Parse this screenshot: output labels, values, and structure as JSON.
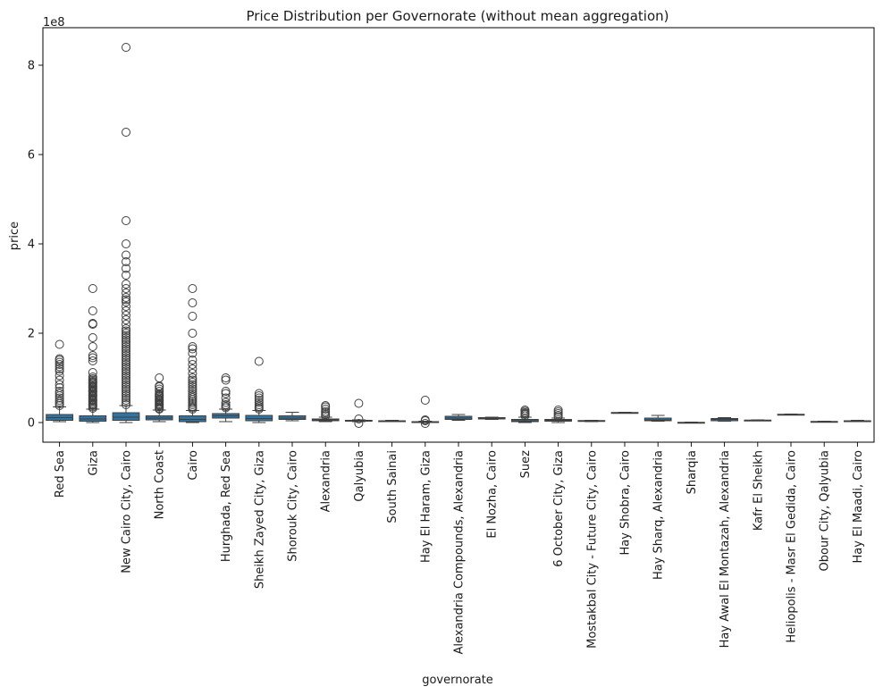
{
  "chart_data": {
    "type": "box",
    "title": "Price Distribution per Governorate (without mean aggregation)",
    "xlabel": "governorate",
    "ylabel": "price",
    "y_multiplier_label": "1e8",
    "y_scale_factor": 100000000,
    "ylim": [
      -4.4,
      8.85
    ],
    "yticks": [
      0,
      2,
      4,
      6,
      8
    ],
    "grid": false,
    "legend": "none",
    "box_color": "#3274a1",
    "edge_color": "#3f3f3f",
    "categories": [
      "Red Sea",
      "Giza",
      "New Cairo City, Cairo",
      "North Coast",
      "Cairo",
      "Hurghada, Red Sea",
      "Sheikh Zayed City, Giza",
      "Shorouk City, Cairo",
      "Alexandria",
      "Qalyubia",
      "South Sainai",
      "Hay El Haram, Giza",
      "Alexandria Compounds, Alexandria",
      "El Nozha, Cairo",
      "Suez",
      "6 October City, Giza",
      "Mostakbal City - Future City, Cairo",
      "Hay Shobra, Cairo",
      "Hay Sharq, Alexandria",
      "Sharqia",
      "Hay Awal El Montazah, Alexandria",
      "Kafr El Sheikh",
      "Heliopolis - Masr El Gedida, Cairo",
      "Obour City, Qalyubia",
      "Hay El Maadi, Cairo"
    ],
    "boxes": [
      {
        "whislo": 0.02,
        "q1": 0.05,
        "med": 0.11,
        "q3": 0.18,
        "whishi": 0.35,
        "fliers": [
          0.38,
          0.42,
          0.46,
          0.5,
          0.55,
          0.6,
          0.65,
          0.7,
          0.78,
          0.85,
          0.95,
          1.05,
          1.15,
          1.2,
          1.25,
          1.3,
          1.35,
          1.4,
          1.43,
          1.75
        ]
      },
      {
        "whislo": 0.0,
        "q1": 0.03,
        "med": 0.08,
        "q3": 0.15,
        "whishi": 0.3,
        "fliers": [
          0.32,
          0.35,
          0.38,
          0.4,
          0.42,
          0.45,
          0.48,
          0.5,
          0.52,
          0.55,
          0.58,
          0.6,
          0.62,
          0.65,
          0.68,
          0.7,
          0.72,
          0.75,
          0.78,
          0.8,
          0.82,
          0.85,
          0.88,
          0.9,
          0.92,
          0.95,
          0.98,
          1.02,
          1.12,
          1.38,
          1.45,
          1.5,
          1.7,
          1.9,
          2.2,
          2.22,
          2.5,
          3.0
        ]
      },
      {
        "whislo": 0.0,
        "q1": 0.05,
        "med": 0.12,
        "q3": 0.22,
        "whishi": 0.38,
        "fliers": [
          0.4,
          0.45,
          0.5,
          0.55,
          0.6,
          0.65,
          0.7,
          0.75,
          0.8,
          0.85,
          0.9,
          0.95,
          1.0,
          1.05,
          1.1,
          1.15,
          1.2,
          1.25,
          1.3,
          1.35,
          1.4,
          1.45,
          1.5,
          1.55,
          1.6,
          1.65,
          1.7,
          1.75,
          1.8,
          1.85,
          1.9,
          1.95,
          2.0,
          2.05,
          2.1,
          2.2,
          2.3,
          2.4,
          2.5,
          2.6,
          2.7,
          2.75,
          2.8,
          2.9,
          3.0,
          3.1,
          3.3,
          3.45,
          3.6,
          3.75,
          4.0,
          4.52,
          6.5,
          8.4
        ]
      },
      {
        "whislo": 0.02,
        "q1": 0.06,
        "med": 0.1,
        "q3": 0.15,
        "whishi": 0.28,
        "fliers": [
          0.3,
          0.32,
          0.35,
          0.38,
          0.4,
          0.42,
          0.45,
          0.48,
          0.5,
          0.52,
          0.55,
          0.58,
          0.6,
          0.62,
          0.65,
          0.7,
          0.75,
          0.8,
          0.82,
          1.0
        ]
      },
      {
        "whislo": 0.0,
        "q1": 0.02,
        "med": 0.07,
        "q3": 0.15,
        "whishi": 0.27,
        "fliers": [
          0.3,
          0.33,
          0.36,
          0.4,
          0.44,
          0.48,
          0.52,
          0.56,
          0.6,
          0.65,
          0.7,
          0.75,
          0.8,
          0.85,
          0.9,
          0.95,
          1.0,
          1.1,
          1.2,
          1.3,
          1.4,
          1.55,
          1.65,
          1.7,
          2.0,
          2.38,
          2.68,
          3.0
        ]
      },
      {
        "whislo": 0.02,
        "q1": 0.1,
        "med": 0.15,
        "q3": 0.2,
        "whishi": 0.3,
        "fliers": [
          0.33,
          0.36,
          0.4,
          0.45,
          0.55,
          0.65,
          0.7,
          0.95,
          1.0
        ]
      },
      {
        "whislo": 0.0,
        "q1": 0.04,
        "med": 0.09,
        "q3": 0.16,
        "whishi": 0.27,
        "fliers": [
          0.3,
          0.33,
          0.36,
          0.4,
          0.45,
          0.5,
          0.55,
          0.6,
          0.65,
          1.37
        ]
      },
      {
        "whislo": 0.04,
        "q1": 0.07,
        "med": 0.1,
        "q3": 0.15,
        "whishi": 0.23,
        "fliers": []
      },
      {
        "whislo": 0.02,
        "q1": 0.04,
        "med": 0.06,
        "q3": 0.08,
        "whishi": 0.12,
        "fliers": [
          0.15,
          0.18,
          0.22,
          0.25,
          0.3,
          0.35,
          0.38
        ]
      },
      {
        "whislo": 0.02,
        "q1": 0.03,
        "med": 0.04,
        "q3": 0.05,
        "whishi": 0.06,
        "fliers": [
          -0.02,
          0.08,
          0.43
        ]
      },
      {
        "whislo": 0.02,
        "q1": 0.03,
        "med": 0.035,
        "q3": 0.04,
        "whishi": 0.05,
        "fliers": []
      },
      {
        "whislo": 0.0,
        "q1": 0.01,
        "med": 0.015,
        "q3": 0.02,
        "whishi": 0.03,
        "fliers": [
          -0.02,
          0.04,
          0.06,
          0.5
        ]
      },
      {
        "whislo": 0.05,
        "q1": 0.07,
        "med": 0.1,
        "q3": 0.14,
        "whishi": 0.18,
        "fliers": []
      },
      {
        "whislo": 0.07,
        "q1": 0.08,
        "med": 0.09,
        "q3": 0.11,
        "whishi": 0.12,
        "fliers": []
      },
      {
        "whislo": 0.0,
        "q1": 0.02,
        "med": 0.04,
        "q3": 0.07,
        "whishi": 0.12,
        "fliers": [
          0.15,
          0.18,
          0.2,
          0.22,
          0.25,
          0.28
        ]
      },
      {
        "whislo": 0.0,
        "q1": 0.03,
        "med": 0.05,
        "q3": 0.07,
        "whishi": 0.1,
        "fliers": [
          0.13,
          0.16,
          0.2,
          0.24,
          0.28
        ]
      },
      {
        "whislo": 0.02,
        "q1": 0.03,
        "med": 0.04,
        "q3": 0.045,
        "whishi": 0.05,
        "fliers": []
      },
      {
        "whislo": 0.21,
        "q1": 0.215,
        "med": 0.22,
        "q3": 0.225,
        "whishi": 0.23,
        "fliers": []
      },
      {
        "whislo": 0.03,
        "q1": 0.04,
        "med": 0.06,
        "q3": 0.1,
        "whishi": 0.16,
        "fliers": []
      },
      {
        "whislo": -0.01,
        "q1": -0.005,
        "med": 0.0,
        "q3": 0.005,
        "whishi": 0.01,
        "fliers": []
      },
      {
        "whislo": 0.03,
        "q1": 0.04,
        "med": 0.07,
        "q3": 0.09,
        "whishi": 0.11,
        "fliers": []
      },
      {
        "whislo": 0.04,
        "q1": 0.045,
        "med": 0.05,
        "q3": 0.055,
        "whishi": 0.06,
        "fliers": []
      },
      {
        "whislo": 0.17,
        "q1": 0.175,
        "med": 0.18,
        "q3": 0.185,
        "whishi": 0.19,
        "fliers": []
      },
      {
        "whislo": 0.01,
        "q1": 0.015,
        "med": 0.02,
        "q3": 0.025,
        "whishi": 0.03,
        "fliers": []
      },
      {
        "whislo": 0.02,
        "q1": 0.03,
        "med": 0.035,
        "q3": 0.04,
        "whishi": 0.05,
        "fliers": []
      }
    ]
  }
}
